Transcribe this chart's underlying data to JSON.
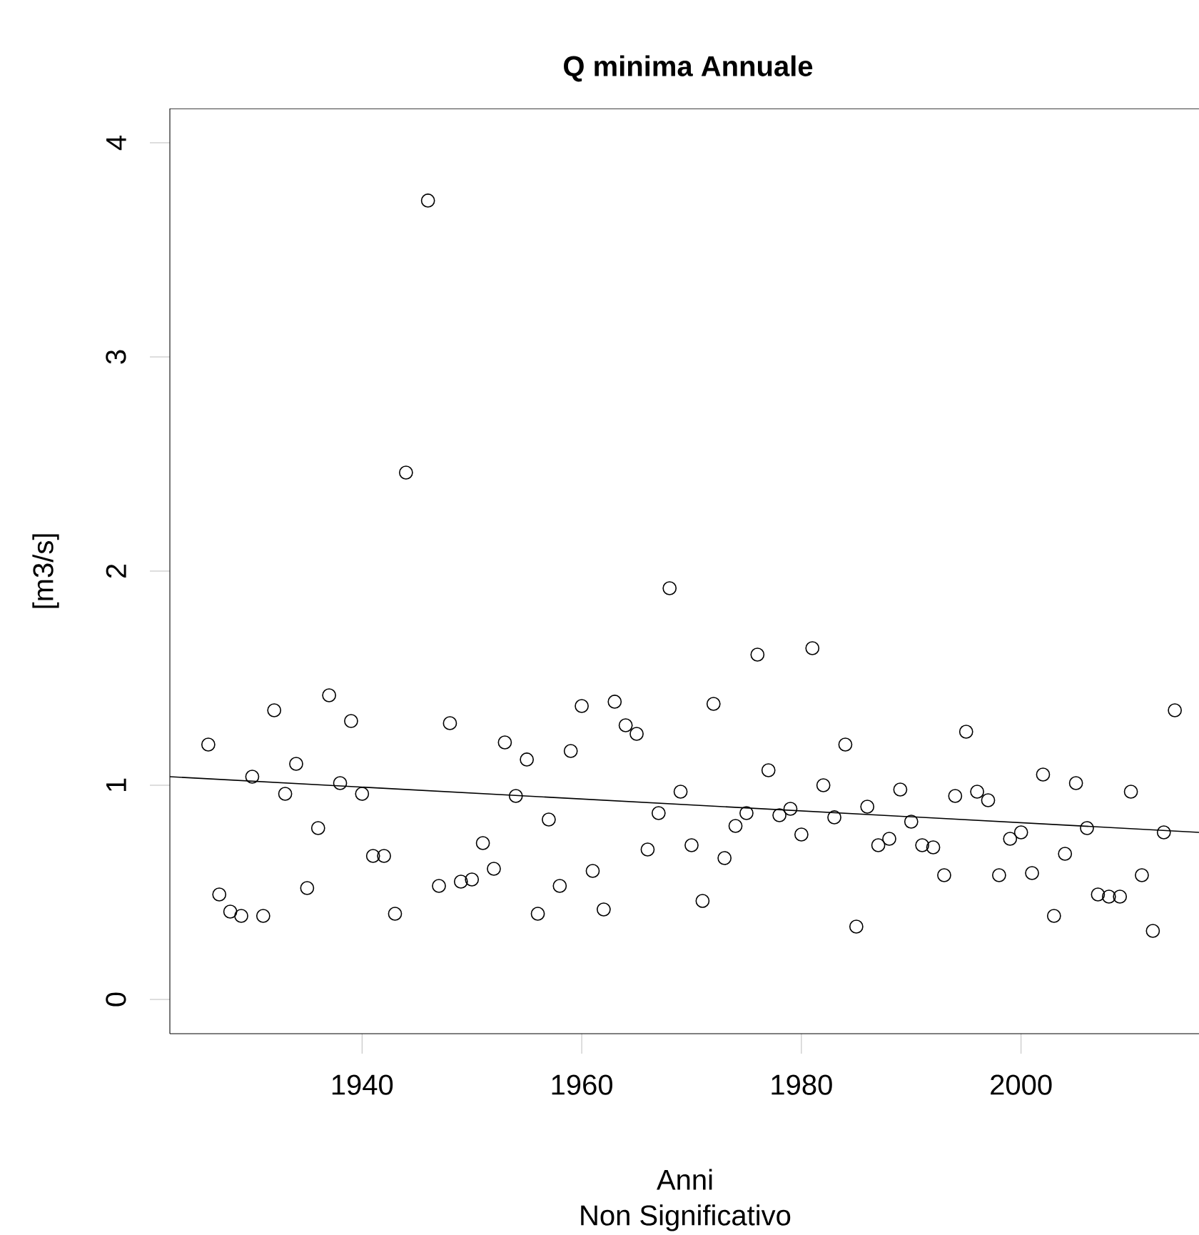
{
  "chart_data": {
    "type": "scatter",
    "title": "Q minima Annuale",
    "subtitle": "Non Significativo",
    "xlabel": "Anni",
    "ylabel": "[m3/s]",
    "xlim": [
      1922.5,
      2016.2
    ],
    "ylim": [
      -0.16,
      4.16
    ],
    "xticks": [
      1940,
      1960,
      1980,
      2000
    ],
    "yticks": [
      0,
      1,
      2,
      3,
      4
    ],
    "grid": false,
    "series": [
      {
        "marker": "circle",
        "color": "#000000",
        "x": [
          1926,
          1927,
          1928,
          1929,
          1930,
          1931,
          1932,
          1933,
          1934,
          1935,
          1936,
          1937,
          1938,
          1939,
          1940,
          1941,
          1942,
          1943,
          1944,
          1945,
          1946,
          1947,
          1948,
          1949,
          1950,
          1951,
          1952,
          1953,
          1954,
          1955,
          1956,
          1957,
          1958,
          1959,
          1960,
          1961,
          1962,
          1963,
          1964,
          1965,
          1966,
          1967,
          1968,
          1969,
          1970,
          1971,
          1972,
          1973,
          1974,
          1975,
          1976,
          1977,
          1978,
          1979,
          1980,
          1981,
          1982,
          1983,
          1984,
          1985,
          1986,
          1987,
          1988,
          1989,
          1990,
          1991,
          1992,
          1993,
          1994,
          1995,
          1996,
          1997,
          1998,
          1999,
          2000,
          2001,
          2002,
          2003,
          2004,
          2005,
          2006,
          2007,
          2008,
          2009,
          2010,
          2011,
          2012,
          2013,
          2014
        ],
        "values": [
          1.19,
          0.49,
          0.41,
          0.39,
          1.04,
          0.39,
          1.35,
          0.96,
          1.1,
          0.52,
          0.8,
          1.42,
          1.01,
          1.3,
          0.96,
          0.67,
          0.67,
          0.4,
          2.46,
          null,
          3.73,
          0.53,
          1.29,
          0.55,
          0.56,
          0.73,
          0.61,
          1.2,
          0.95,
          1.12,
          0.4,
          0.84,
          0.53,
          1.16,
          1.37,
          0.6,
          0.42,
          1.39,
          1.28,
          1.24,
          0.7,
          0.87,
          1.92,
          0.97,
          0.72,
          0.46,
          1.38,
          0.66,
          0.81,
          0.87,
          1.61,
          1.07,
          0.86,
          0.89,
          0.77,
          1.64,
          1.0,
          0.85,
          1.19,
          0.34,
          0.9,
          0.72,
          0.75,
          0.98,
          0.83,
          0.72,
          0.71,
          0.58,
          0.95,
          1.25,
          0.97,
          0.93,
          0.58,
          0.75,
          0.78,
          0.59,
          1.05,
          0.39,
          0.68,
          1.01,
          0.8,
          0.49,
          0.48,
          0.48,
          0.97,
          0.58,
          0.32,
          0.78,
          1.35
        ]
      },
      {
        "type": "line",
        "color": "#000000",
        "line_style": "solid",
        "x": [
          1922.5,
          2016.2
        ],
        "values": [
          1.04,
          0.78
        ]
      }
    ]
  }
}
